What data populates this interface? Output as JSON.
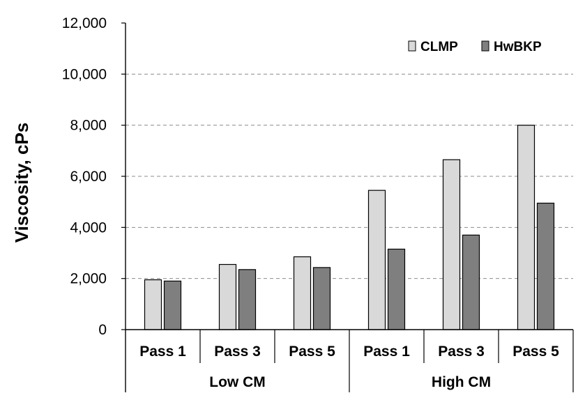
{
  "chart_data": {
    "type": "bar",
    "title": "",
    "xlabel": "",
    "ylabel": "Viscosity, cPs",
    "ylim": [
      0,
      12000
    ],
    "yticks": [
      "0",
      "2,000",
      "4,000",
      "6,000",
      "8,000",
      "10,000",
      "12,000"
    ],
    "grid": "horizontal dashed",
    "legend_position": "top-right",
    "categories": [
      "Pass 1",
      "Pass 3",
      "Pass 5",
      "Pass 1",
      "Pass 3",
      "Pass 5"
    ],
    "groups": [
      {
        "label": "Low CM",
        "categories": [
          "Pass 1",
          "Pass 3",
          "Pass 5"
        ]
      },
      {
        "label": "High CM",
        "categories": [
          "Pass 1",
          "Pass 3",
          "Pass 5"
        ]
      }
    ],
    "series": [
      {
        "name": "CLMP",
        "color": "#d9d9d9",
        "values": [
          1950,
          2550,
          2850,
          5450,
          6650,
          8000
        ]
      },
      {
        "name": "HwBKP",
        "color": "#7f7f7f",
        "values": [
          1900,
          2350,
          2430,
          3150,
          3700,
          4950
        ]
      }
    ]
  }
}
